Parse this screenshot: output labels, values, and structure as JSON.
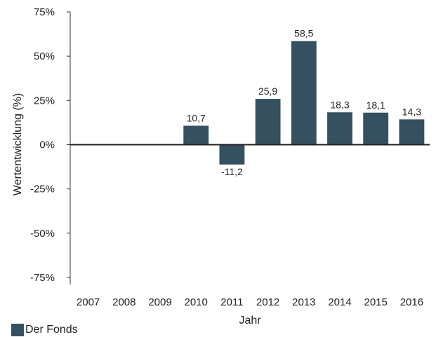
{
  "chart_data": {
    "type": "bar",
    "categories": [
      "2007",
      "2008",
      "2009",
      "2010",
      "2011",
      "2012",
      "2013",
      "2014",
      "2015",
      "2016"
    ],
    "values": [
      null,
      null,
      null,
      10.7,
      -11.2,
      25.9,
      58.5,
      18.3,
      18.1,
      14.3
    ],
    "data_labels": [
      "",
      "",
      "",
      "10,7",
      "-11,2",
      "25,9",
      "58,5",
      "18,3",
      "18,1",
      "14,3"
    ],
    "xlabel": "Jahr",
    "ylabel": "Wertentwicklung (%)",
    "ylim": [
      -75,
      75
    ],
    "yticks": [
      75,
      50,
      25,
      0,
      -25,
      -50,
      -75
    ],
    "ytick_labels": [
      "75%",
      "50%",
      "25%",
      "0%",
      "-25%",
      "-50%",
      "-75%"
    ],
    "grid": false,
    "legend_position": "bottom-left",
    "series": [
      {
        "name": "Der Fonds",
        "color": "#35505e"
      }
    ]
  }
}
